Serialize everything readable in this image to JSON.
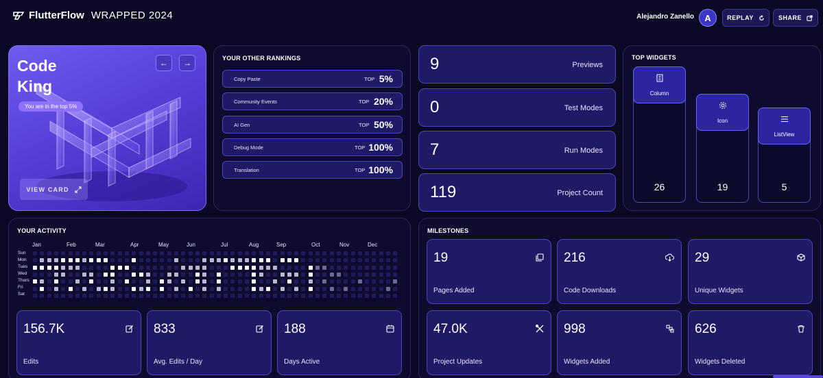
{
  "header": {
    "brand": "FlutterFlow",
    "subtitle": "WRAPPED 2024",
    "user_name": "Alejandro Zanello",
    "avatar_initial": "A",
    "replay_label": "REPLAY",
    "share_label": "SHARE"
  },
  "hero": {
    "title_line1": "Code",
    "title_line2": "King",
    "pill": "You are in the top 5%",
    "view_card_label": "VIEW CARD"
  },
  "rankings": {
    "title": "YOUR OTHER RANKINGS",
    "items": [
      {
        "label": "Copy Paste",
        "top": "TOP",
        "value": "5%"
      },
      {
        "label": "Community Events",
        "top": "TOP",
        "value": "20%"
      },
      {
        "label": "AI Gen",
        "top": "TOP",
        "value": "50%"
      },
      {
        "label": "Debug Mode",
        "top": "TOP",
        "value": "100%"
      },
      {
        "label": "Translation",
        "top": "TOP",
        "value": "100%"
      }
    ]
  },
  "stats": [
    {
      "value": "9",
      "label": "Previews"
    },
    {
      "value": "0",
      "label": "Test Modes"
    },
    {
      "value": "7",
      "label": "Run Modes"
    },
    {
      "value": "119",
      "label": "Project Count"
    }
  ],
  "top_widgets": {
    "title": "TOP WIDGETS",
    "items": [
      {
        "name": "Column",
        "value": "26",
        "icon": "column-icon"
      },
      {
        "name": "Icon",
        "value": "19",
        "icon": "gear-icon"
      },
      {
        "name": "ListView",
        "value": "5",
        "icon": "list-icon"
      }
    ]
  },
  "activity": {
    "title": "YOUR ACTIVITY",
    "months": [
      "Jan",
      "Feb",
      "Mar",
      "Apr",
      "May",
      "Jun",
      "Jul",
      "Aug",
      "Sep",
      "Oct",
      "Nov",
      "Dec"
    ],
    "days": [
      "Sun",
      "Mon",
      "Tues",
      "Wed",
      "Thurs",
      "Fri",
      "Sat"
    ],
    "cards": [
      {
        "value": "156.7K",
        "label": "Edits",
        "icon": "edit-icon"
      },
      {
        "value": "833",
        "label": "Avg. Edits / Day",
        "icon": "edit-icon"
      },
      {
        "value": "188",
        "label": "Days Active",
        "icon": "calendar-icon"
      }
    ]
  },
  "milestones": {
    "title": "MILESTONES",
    "cards": [
      {
        "value": "19",
        "label": "Pages Added",
        "icon": "pages-icon"
      },
      {
        "value": "216",
        "label": "Code Downloads",
        "icon": "cloud-download-icon"
      },
      {
        "value": "29",
        "label": "Unique Widgets",
        "icon": "cube-icon"
      },
      {
        "value": "47.0K",
        "label": "Project Updates",
        "icon": "tools-icon"
      },
      {
        "value": "998",
        "label": "Widgets Added",
        "icon": "widgets-add-icon"
      },
      {
        "value": "626",
        "label": "Widgets Deleted",
        "icon": "trash-icon"
      }
    ]
  },
  "colors": {
    "background": "#0a0822",
    "panel": "#0e0b2e",
    "card": "#1f1a66",
    "accent": "#5a46e0"
  }
}
